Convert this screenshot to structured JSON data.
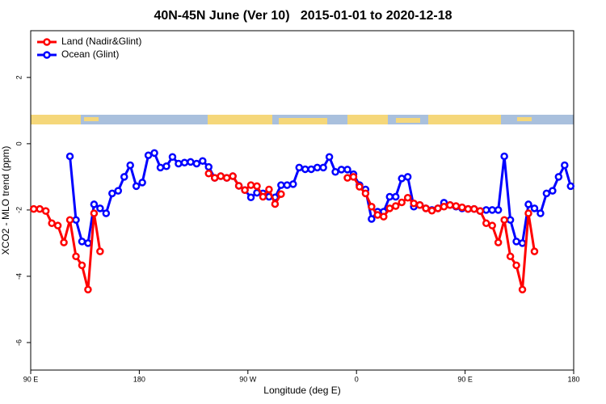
{
  "chart_data": {
    "type": "line",
    "title": "40N-45N June (Ver 10)   2015-01-01 to 2020-12-18",
    "x_label": "Longitude (deg E)",
    "y_label": "XCO2 - MLO trend (ppm)",
    "x": [
      92.5,
      97.5,
      102.5,
      107.5,
      112.5,
      117.5,
      122.5,
      127.5,
      132.5,
      137.5,
      142.5,
      147.5,
      152.5,
      157.5,
      162.5,
      167.5,
      172.5,
      177.5,
      182.5,
      187.5,
      192.5,
      197.5,
      202.5,
      207.5,
      212.5,
      217.5,
      222.5,
      227.5,
      232.5,
      237.5,
      242.5,
      247.5,
      252.5,
      257.5,
      262.5,
      267.5,
      272.5,
      277.5,
      282.5,
      287.5,
      292.5,
      297.5,
      302.5,
      307.5,
      312.5,
      317.5,
      322.5,
      327.5,
      332.5,
      337.5,
      342.5,
      347.5,
      352.5,
      357.5,
      362.5,
      367.5,
      372.5,
      377.5,
      382.5,
      387.5,
      392.5,
      397.5,
      402.5,
      407.5,
      412.5,
      417.5,
      422.5,
      427.5,
      432.5,
      437.5,
      442.5,
      447.5,
      452.5,
      457.5,
      462.5,
      467.5,
      472.5,
      477.5,
      482.5,
      487.5,
      492.5,
      497.5,
      502.5,
      507.5,
      512.5,
      517.5,
      522.5,
      527.5,
      532.5,
      537.5
    ],
    "series": [
      {
        "name": "Ocean (Glint)",
        "color": "#0000ff",
        "values": [
          null,
          null,
          null,
          null,
          null,
          null,
          -0.38,
          -2.3,
          -2.95,
          -3.0,
          -1.83,
          -1.95,
          -2.1,
          -1.5,
          -1.42,
          -1.0,
          -0.65,
          -1.28,
          -1.17,
          -0.35,
          -0.28,
          -0.72,
          -0.68,
          -0.4,
          -0.6,
          -0.57,
          -0.55,
          -0.6,
          -0.52,
          -0.7,
          -1.03,
          -0.98,
          -1.03,
          -0.98,
          -1.27,
          -1.4,
          -1.62,
          -1.48,
          -1.5,
          -1.6,
          -1.62,
          -1.25,
          -1.25,
          -1.22,
          -0.72,
          -0.77,
          -0.77,
          -0.72,
          -0.72,
          -0.4,
          -0.85,
          -0.78,
          -0.78,
          -0.92,
          -1.25,
          -1.38,
          -2.27,
          -2.05,
          -2.05,
          -1.6,
          -1.6,
          -1.05,
          -1.0,
          -1.9,
          -1.85,
          -1.95,
          -2.0,
          -1.95,
          -1.78,
          -1.85,
          -1.9,
          -1.95,
          -1.97,
          -1.97,
          -2.03,
          -2.0,
          -2.0,
          -2.0,
          -0.38,
          -2.3,
          -2.95,
          -3.0,
          -1.83,
          -1.95,
          -2.1,
          -1.5,
          -1.42,
          -1.0,
          -0.65,
          -1.28
        ]
      },
      {
        "name": "Land (Nadir&Glint)",
        "color": "#ff0000",
        "values": [
          -1.97,
          -1.97,
          -2.03,
          -2.4,
          -2.47,
          -2.98,
          -2.3,
          -3.4,
          -3.67,
          -4.4,
          -2.1,
          -3.25,
          null,
          null,
          null,
          null,
          null,
          null,
          null,
          null,
          null,
          null,
          null,
          null,
          null,
          null,
          null,
          null,
          null,
          -0.9,
          -1.03,
          -0.98,
          -1.03,
          -0.98,
          -1.27,
          -1.4,
          -1.25,
          -1.28,
          -1.6,
          -1.38,
          -1.82,
          -1.52,
          null,
          null,
          null,
          null,
          null,
          null,
          null,
          null,
          null,
          null,
          -1.03,
          -1.0,
          -1.3,
          -1.5,
          -1.9,
          -2.15,
          -2.2,
          -1.95,
          -1.88,
          -1.77,
          -1.63,
          -1.8,
          -1.85,
          -1.95,
          -2.02,
          -1.95,
          -1.9,
          -1.85,
          -1.88,
          -1.92,
          -1.97,
          -1.97,
          -2.03,
          -2.4,
          -2.47,
          -2.98,
          -2.3,
          -3.4,
          -3.67,
          -4.4,
          -2.1,
          -3.25,
          null,
          null,
          null,
          null,
          null,
          null
        ]
      }
    ],
    "legend_order": [
      1,
      0
    ],
    "xlim": [
      90,
      540
    ],
    "xticks": [
      {
        "value": 90,
        "label": "90 E"
      },
      180,
      {
        "value": 270,
        "label": "90 W"
      },
      {
        "value": 360,
        "label": "0"
      },
      {
        "value": 450,
        "label": "90 E"
      },
      {
        "value": 540,
        "label": "180"
      }
    ],
    "ylim": [
      -6.83,
      3.41
    ],
    "yticks": [
      -6,
      -4,
      -2,
      0,
      2
    ],
    "grid": false,
    "legend": "top-left"
  }
}
